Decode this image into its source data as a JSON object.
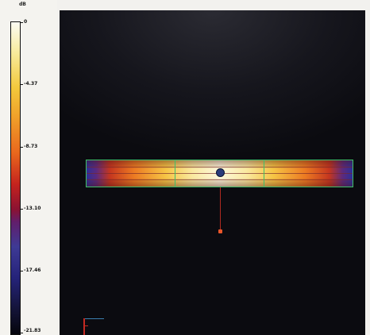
{
  "legend": {
    "unit": "dB",
    "ticks": [
      "0",
      "-4.37",
      "-8.73",
      "-13.10",
      "-17.46",
      "-21.83"
    ],
    "colors": [
      "#fcfcf4",
      "#f7ea9a",
      "#f3c93c",
      "#f0a22a",
      "#e9671d",
      "#c4231e",
      "#8b1232",
      "#621e6b",
      "#3e3a95",
      "#25237a",
      "#141438",
      "#05050c"
    ]
  },
  "view": {
    "background": "#0b0b10",
    "outline_color": "#3fbf6a",
    "probe_color": "#b02a20"
  }
}
